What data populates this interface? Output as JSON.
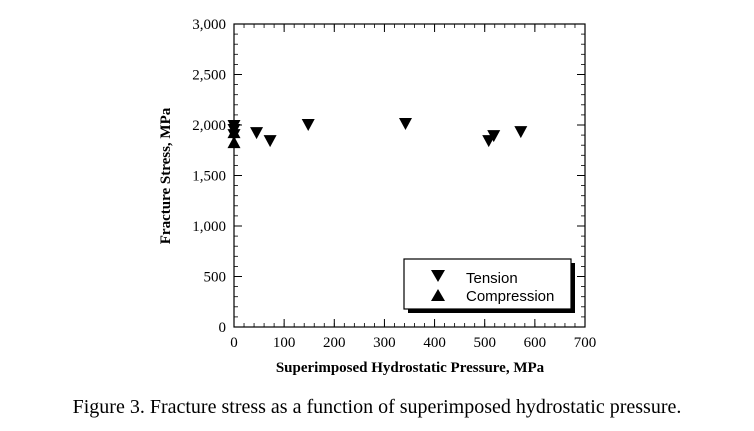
{
  "chart_data": {
    "type": "scatter",
    "xlabel": "Superimposed Hydrostatic Pressure, MPa",
    "ylabel": "Fracture Stress, MPa",
    "xlim": [
      0,
      700
    ],
    "ylim": [
      0,
      3000
    ],
    "x_ticks": [
      0,
      100,
      200,
      300,
      400,
      500,
      600,
      700
    ],
    "x_tick_labels": [
      "0",
      "100",
      "200",
      "300",
      "400",
      "500",
      "600",
      "700"
    ],
    "y_ticks": [
      0,
      500,
      1000,
      1500,
      2000,
      2500,
      3000
    ],
    "y_tick_labels": [
      "0",
      "500",
      "1,000",
      "1,500",
      "2,000",
      "2,500",
      "3,000"
    ],
    "grid": false,
    "legend_position": "bottom-right",
    "series": [
      {
        "name": "Tension",
        "marker": "triangle-down",
        "color": "#000000",
        "points": [
          {
            "x": 0,
            "y": 1990
          },
          {
            "x": 0,
            "y": 1950
          },
          {
            "x": 0,
            "y": 1900
          },
          {
            "x": 45,
            "y": 1920
          },
          {
            "x": 72,
            "y": 1840
          },
          {
            "x": 148,
            "y": 2000
          },
          {
            "x": 342,
            "y": 2010
          },
          {
            "x": 508,
            "y": 1840
          },
          {
            "x": 518,
            "y": 1890
          },
          {
            "x": 572,
            "y": 1930
          }
        ]
      },
      {
        "name": "Compression",
        "marker": "triangle-up",
        "color": "#000000",
        "points": [
          {
            "x": 0,
            "y": 1830
          },
          {
            "x": 0,
            "y": 1930
          }
        ]
      }
    ]
  },
  "caption": "Figure 3.  Fracture stress as a function of superimposed hydrostatic pressure."
}
